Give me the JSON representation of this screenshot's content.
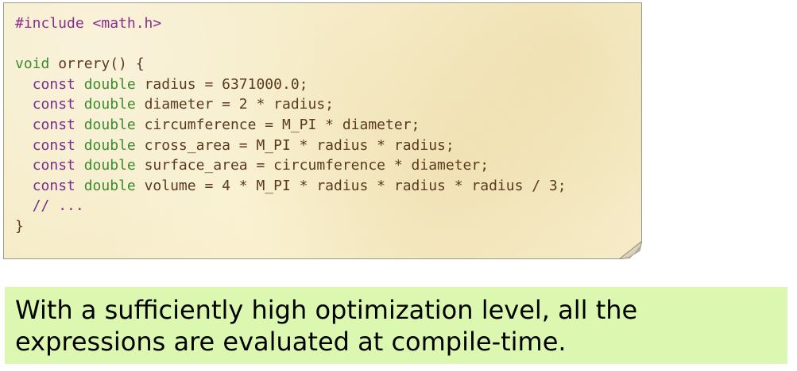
{
  "code_block": {
    "line1": {
      "pp": "#include <math.h>"
    },
    "line2": {},
    "line3": {
      "type": "void",
      "text": " orrery() {"
    },
    "line4": {
      "kw": "const",
      "type": "double",
      "text": " radius = 6371000.0;"
    },
    "line5": {
      "kw": "const",
      "type": "double",
      "text": " diameter = 2 * radius;"
    },
    "line6": {
      "kw": "const",
      "type": "double",
      "text": " circumference = M_PI * diameter;"
    },
    "line7": {
      "kw": "const",
      "type": "double",
      "text": " cross_area = M_PI * radius * radius;"
    },
    "line8": {
      "kw": "const",
      "type": "double",
      "text": " surface_area = circumference * diameter;"
    },
    "line9": {
      "kw": "const",
      "type": "double",
      "text": " volume = 4 * M_PI * radius * radius * radius / 3;"
    },
    "line10": {
      "comment": "// ..."
    },
    "line11": {
      "text": "}"
    }
  },
  "note": {
    "text": "With a sufficiently high optimization level, all the expressions are evaluated at compile-time."
  },
  "colors": {
    "card_background": "#f6ecc8",
    "keyword": "#7a2b8c",
    "type": "#3c8a2e",
    "identifier": "#5a3a1e",
    "note_background": "#dcf7b0"
  }
}
